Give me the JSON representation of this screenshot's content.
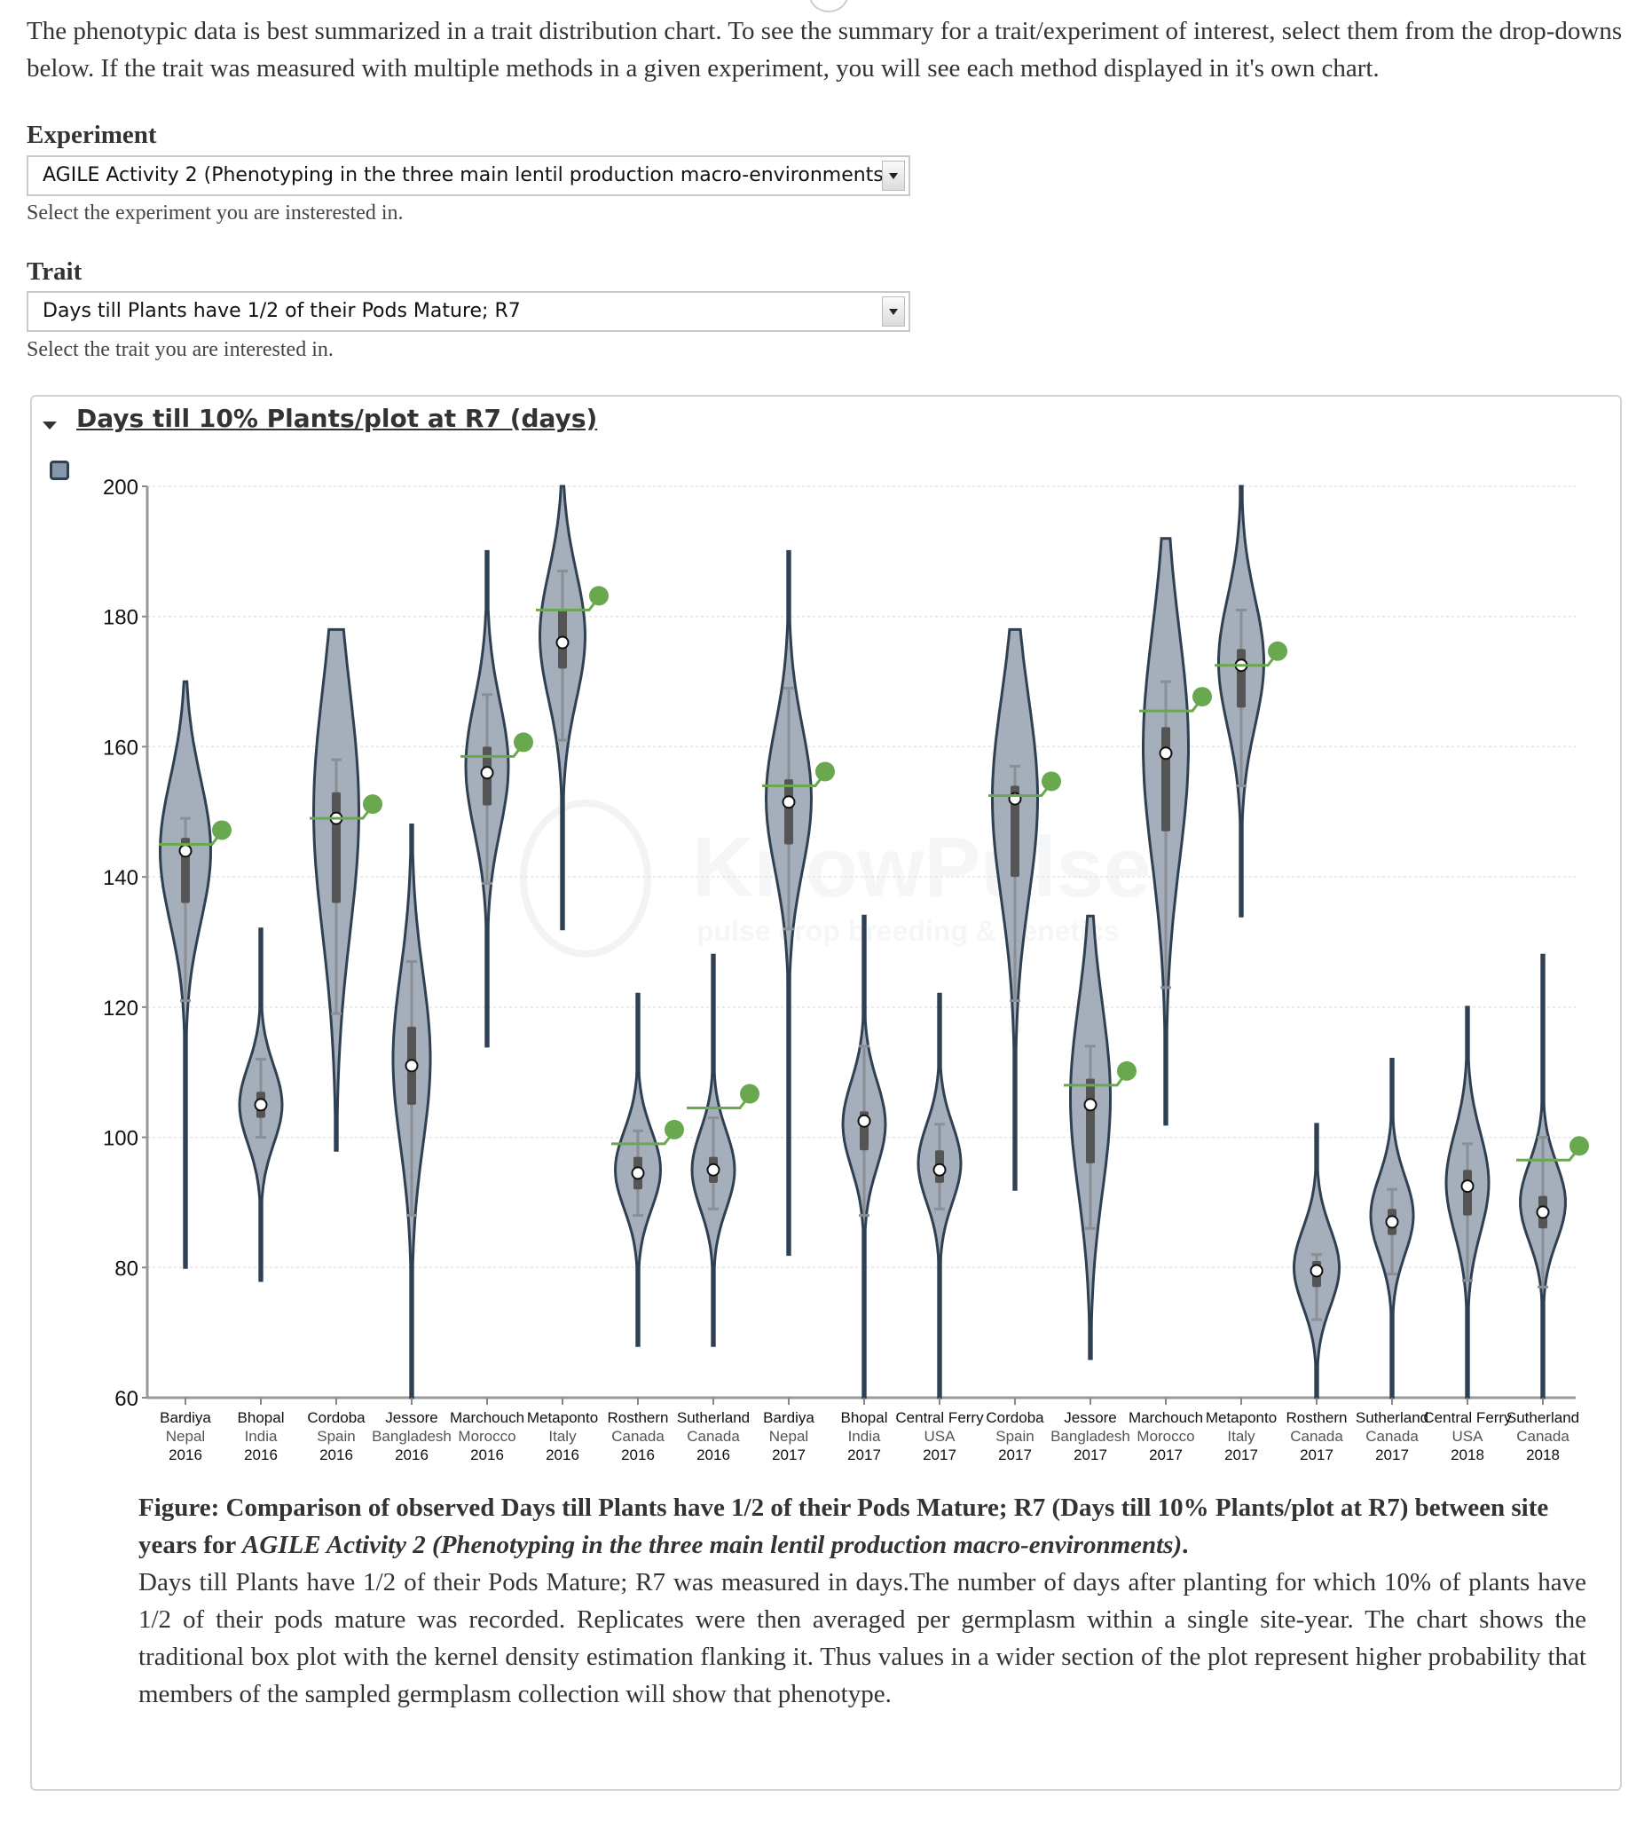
{
  "intro_text": "The phenotypic data is best summarized in a trait distribution chart. To see the summary for a trait/experiment of interest, select them from the drop-downs below. If the trait was measured with multiple methods in a given experiment, you will see each method displayed in it's own chart.",
  "experiment": {
    "label": "Experiment",
    "value": "AGILE Activity 2 (Phenotyping in the three main lentil production macro-environments)",
    "help": "Select the experiment you are insterested in."
  },
  "trait": {
    "label": "Trait",
    "value": "Days till Plants have 1/2 of their Pods Mature; R7",
    "help": "Select the trait you are interested in."
  },
  "panel": {
    "title": "Days till 10% Plants/plot at R7 (days)"
  },
  "watermark": {
    "name": "KnowPulse",
    "tagline": "pulse crop breeding & genetics"
  },
  "colors": {
    "violin_fill": "#a5aebb",
    "violin_stroke": "#2f4052",
    "box": "#555555",
    "whisker": "#8a8f96",
    "check_line": "#6aa84f",
    "check_dot": "#6aa84f"
  },
  "chart_data": {
    "type": "violin",
    "ylim": [
      60,
      200
    ],
    "yticks": [
      "200",
      "180",
      "160",
      "140",
      "120",
      "100",
      "80",
      "60"
    ],
    "ytick_values": [
      200,
      180,
      160,
      140,
      120,
      100,
      80,
      60
    ],
    "grid": true,
    "categories": [
      {
        "site": "Bardiya",
        "country": "Nepal",
        "year": "2016",
        "min": 80,
        "max": 170,
        "q1": 136,
        "q3": 146,
        "median": 144,
        "wlo": 121,
        "whi": 149,
        "check": 145,
        "peak": 144,
        "width": 0.95
      },
      {
        "site": "Bhopal",
        "country": "India",
        "year": "2016",
        "min": 78,
        "max": 132,
        "q1": 103,
        "q3": 107,
        "median": 105,
        "wlo": 100,
        "whi": 112,
        "check": null,
        "peak": 105,
        "width": 0.8
      },
      {
        "site": "Cordoba",
        "country": "Spain",
        "year": "2016",
        "min": 98,
        "max": 178,
        "q1": 136,
        "q3": 153,
        "median": 149,
        "wlo": 119,
        "whi": 158,
        "check": 149,
        "peak": 150,
        "width": 0.85
      },
      {
        "site": "Jessore",
        "country": "Bangladesh",
        "year": "2016",
        "min": 60,
        "max": 148,
        "q1": 105,
        "q3": 117,
        "median": 111,
        "wlo": 88,
        "whi": 127,
        "check": null,
        "peak": 112,
        "width": 0.7
      },
      {
        "site": "Marchouch",
        "country": "Morocco",
        "year": "2016",
        "min": 114,
        "max": 190,
        "q1": 151,
        "q3": 160,
        "median": 156,
        "wlo": 139,
        "whi": 168,
        "check": 158.5,
        "peak": 157,
        "width": 0.8
      },
      {
        "site": "Metaponto",
        "country": "Italy",
        "year": "2016",
        "min": 132,
        "max": 200,
        "q1": 172,
        "q3": 181,
        "median": 176,
        "wlo": 161,
        "whi": 187,
        "check": 181,
        "peak": 177,
        "width": 0.85
      },
      {
        "site": "Rosthern",
        "country": "Canada",
        "year": "2016",
        "min": 68,
        "max": 122,
        "q1": 92,
        "q3": 97,
        "median": 94.5,
        "wlo": 88,
        "whi": 101,
        "check": 99,
        "peak": 95,
        "width": 0.85
      },
      {
        "site": "Sutherland",
        "country": "Canada",
        "year": "2016",
        "min": 68,
        "max": 128,
        "q1": 93,
        "q3": 97,
        "median": 95,
        "wlo": 89,
        "whi": 103,
        "check": 104.5,
        "peak": 95,
        "width": 0.8
      },
      {
        "site": "Bardiya",
        "country": "Nepal",
        "year": "2017",
        "min": 82,
        "max": 190,
        "q1": 145,
        "q3": 155,
        "median": 151.5,
        "wlo": 132,
        "whi": 169,
        "check": 154,
        "peak": 152,
        "width": 0.85
      },
      {
        "site": "Bhopal",
        "country": "India",
        "year": "2017",
        "min": 60,
        "max": 134,
        "q1": 98,
        "q3": 104,
        "median": 102.5,
        "wlo": 88,
        "whi": 114,
        "check": null,
        "peak": 102,
        "width": 0.8
      },
      {
        "site": "Central Ferry",
        "country": "USA",
        "year": "2017",
        "min": 60,
        "max": 122,
        "q1": 93,
        "q3": 98,
        "median": 95,
        "wlo": 89,
        "whi": 102,
        "check": null,
        "peak": 96,
        "width": 0.8
      },
      {
        "site": "Cordoba",
        "country": "Spain",
        "year": "2017",
        "min": 92,
        "max": 178,
        "q1": 140,
        "q3": 154,
        "median": 152,
        "wlo": 121,
        "whi": 157,
        "check": 152.5,
        "peak": 152,
        "width": 0.85
      },
      {
        "site": "Jessore",
        "country": "Bangladesh",
        "year": "2017",
        "min": 66,
        "max": 134,
        "q1": 96,
        "q3": 109,
        "median": 105,
        "wlo": 86,
        "whi": 114,
        "check": 108,
        "peak": 106,
        "width": 0.75
      },
      {
        "site": "Marchouch",
        "country": "Morocco",
        "year": "2017",
        "min": 102,
        "max": 192,
        "q1": 147,
        "q3": 163,
        "median": 159,
        "wlo": 123,
        "whi": 170,
        "check": 165.5,
        "peak": 160,
        "width": 0.85
      },
      {
        "site": "Metaponto",
        "country": "Italy",
        "year": "2017",
        "min": 134,
        "max": 200,
        "q1": 166,
        "q3": 175,
        "median": 172.5,
        "wlo": 154,
        "whi": 181,
        "check": 172.5,
        "peak": 173,
        "width": 0.85
      },
      {
        "site": "Rosthern",
        "country": "Canada",
        "year": "2017",
        "min": 60,
        "max": 102,
        "q1": 77,
        "q3": 81,
        "median": 79.5,
        "wlo": 72,
        "whi": 82,
        "check": null,
        "peak": 80,
        "width": 0.85
      },
      {
        "site": "Sutherland",
        "country": "Canada",
        "year": "2017",
        "min": 60,
        "max": 112,
        "q1": 85,
        "q3": 89,
        "median": 87,
        "wlo": 79,
        "whi": 92,
        "check": null,
        "peak": 88,
        "width": 0.8
      },
      {
        "site": "Central Ferry",
        "country": "USA",
        "year": "2018",
        "min": 60,
        "max": 120,
        "q1": 88,
        "q3": 95,
        "median": 92.5,
        "wlo": 78,
        "whi": 99,
        "check": null,
        "peak": 93,
        "width": 0.8
      },
      {
        "site": "Sutherland",
        "country": "Canada",
        "year": "2018",
        "min": 60,
        "max": 128,
        "q1": 86,
        "q3": 91,
        "median": 88.5,
        "wlo": 77,
        "whi": 100,
        "check": 96.5,
        "peak": 90,
        "width": 0.85
      }
    ]
  },
  "caption": {
    "title_prefix": "Figure: Comparison of observed Days till Plants have 1/2 of their Pods Mature; R7 (Days till 10% Plants/plot at R7) between site years for ",
    "title_experiment": "AGILE Activity 2 (Phenotyping in the three main lentil production macro-environments)",
    "title_suffix": ".",
    "description": "Days till Plants have 1/2 of their Pods Mature; R7 was measured in days.The number of days after planting for which 10% of plants have 1/2 of their pods mature was recorded. Replicates were then averaged per germplasm within a single site-year. The chart shows the traditional box plot with the kernel density estimation flanking it. Thus values in a wider section of the plot represent higher probability that members of the sampled germplasm collection will show that phenotype."
  }
}
